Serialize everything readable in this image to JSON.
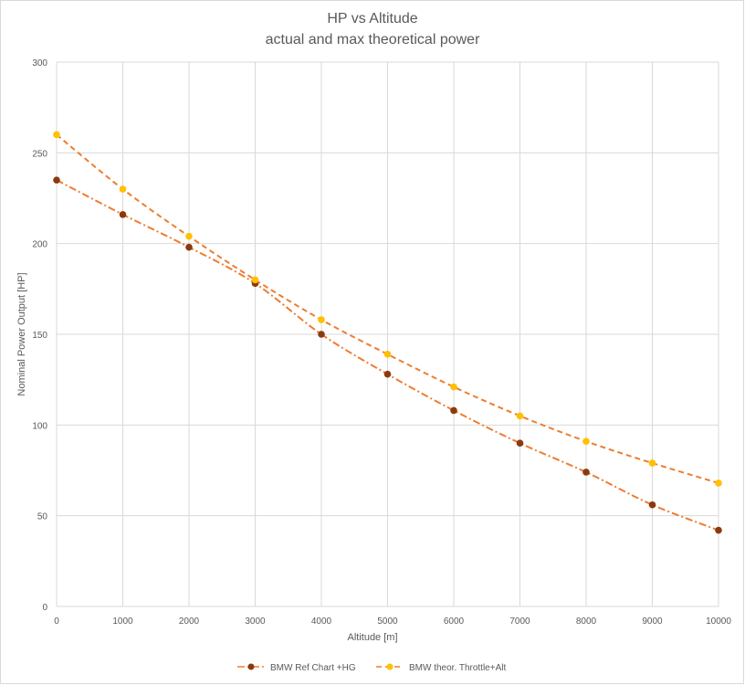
{
  "chart_data": {
    "type": "line",
    "title": "HP vs Altitude",
    "subtitle": "actual and max theoretical power",
    "xlabel": "Altitude [m]",
    "ylabel": "Nominal Power Output [HP]",
    "xlim": [
      0,
      10000
    ],
    "ylim": [
      0,
      300
    ],
    "xticks": [
      0,
      1000,
      2000,
      3000,
      4000,
      5000,
      6000,
      7000,
      8000,
      9000,
      10000
    ],
    "yticks": [
      0,
      50,
      100,
      150,
      200,
      250,
      300
    ],
    "grid": true,
    "legend_position": "bottom",
    "x": [
      0,
      1000,
      2000,
      3000,
      4000,
      5000,
      6000,
      7000,
      8000,
      9000,
      10000
    ],
    "series": [
      {
        "name": "BMW Ref Chart +HG",
        "values": [
          235,
          216,
          198,
          178,
          150,
          128,
          108,
          90,
          74,
          56,
          42
        ],
        "line_color": "#ed7d31",
        "marker_color": "#8b3a0f",
        "dash": "dash-dot"
      },
      {
        "name": "BMW theor. Throttle+Alt",
        "values": [
          260,
          230,
          204,
          180,
          158,
          139,
          121,
          105,
          91,
          79,
          68
        ],
        "line_color": "#ed7d31",
        "marker_color": "#ffc000",
        "dash": "dash"
      }
    ]
  }
}
